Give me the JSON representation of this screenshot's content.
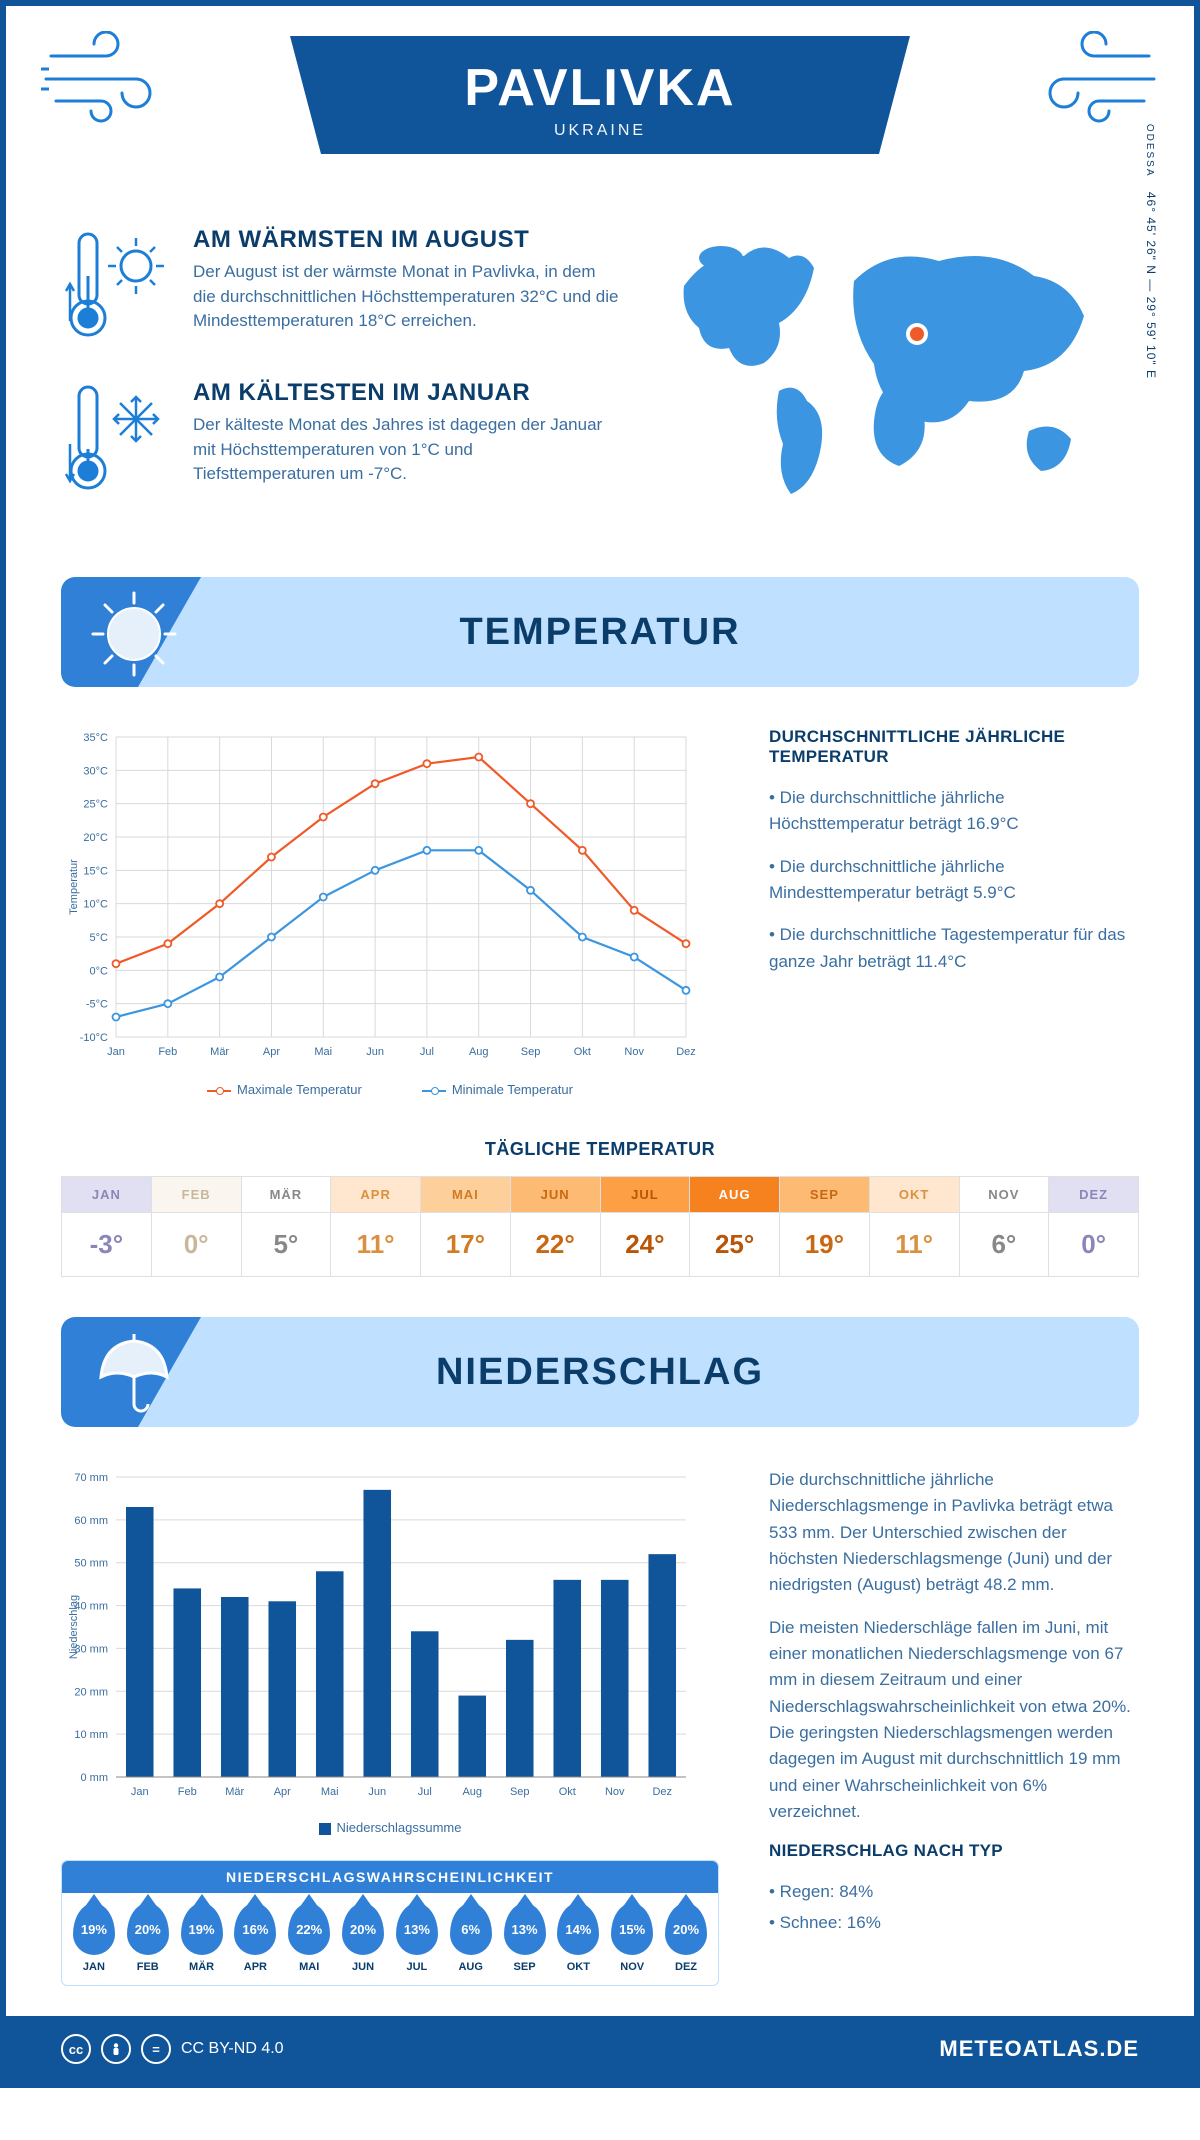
{
  "header": {
    "city": "PAVLIVKA",
    "country": "UKRAINE",
    "region": "ODESSA",
    "coords": "46° 45' 26\" N — 29° 59' 10\" E"
  },
  "facts": {
    "warm": {
      "title": "AM WÄRMSTEN IM AUGUST",
      "text": "Der August ist der wärmste Monat in Pavlivka, in dem die durchschnittlichen Höchsttemperaturen 32°C und die Mindesttemperaturen 18°C erreichen."
    },
    "cold": {
      "title": "AM KÄLTESTEN IM JANUAR",
      "text": "Der kälteste Monat des Jahres ist dagegen der Januar mit Höchsttemperaturen von 1°C und Tiefsttemperaturen um -7°C."
    }
  },
  "temp_section": {
    "heading": "TEMPERATUR",
    "info_title": "DURCHSCHNITTLICHE JÄHRLICHE TEMPERATUR",
    "bullet1": "• Die durchschnittliche jährliche Höchsttemperatur beträgt 16.9°C",
    "bullet2": "• Die durchschnittliche jährliche Mindesttemperatur beträgt 5.9°C",
    "bullet3": "• Die durchschnittliche Tagestemperatur für das ganze Jahr beträgt 11.4°C",
    "legend_max": "Maximale Temperatur",
    "legend_min": "Minimale Temperatur",
    "daily_title": "TÄGLICHE TEMPERATUR",
    "chart": {
      "type": "line",
      "months": [
        "Jan",
        "Feb",
        "Mär",
        "Apr",
        "Mai",
        "Jun",
        "Jul",
        "Aug",
        "Sep",
        "Okt",
        "Nov",
        "Dez"
      ],
      "max_series": [
        1,
        4,
        10,
        17,
        23,
        28,
        31,
        32,
        25,
        18,
        9,
        4
      ],
      "min_series": [
        -7,
        -5,
        -1,
        5,
        11,
        15,
        18,
        18,
        12,
        5,
        2,
        -3
      ],
      "max_color": "#ef5a28",
      "min_color": "#3b95e0",
      "ylabel": "Temperatur",
      "ylim": [
        -10,
        35
      ],
      "ytick_step": 5,
      "grid_color": "#d9d9d9",
      "line_width": 2.2,
      "marker": "circle",
      "marker_fill": "#ffffff",
      "background": "#ffffff"
    },
    "daily": {
      "months": [
        "JAN",
        "FEB",
        "MÄR",
        "APR",
        "MAI",
        "JUN",
        "JUL",
        "AUG",
        "SEP",
        "OKT",
        "NOV",
        "DEZ"
      ],
      "values": [
        "-3°",
        "0°",
        "5°",
        "11°",
        "17°",
        "22°",
        "24°",
        "25°",
        "19°",
        "11°",
        "6°",
        "0°"
      ],
      "head_colors": [
        "#e1e0f3",
        "#faf5ef",
        "#ffffff",
        "#fee7ce",
        "#fdcf9b",
        "#fdba72",
        "#fd9f45",
        "#f5821f",
        "#fdba72",
        "#fee7ce",
        "#ffffff",
        "#e1e0f3"
      ],
      "head_text": [
        "#8a87b8",
        "#c9b79b",
        "#888",
        "#d9913f",
        "#d17b22",
        "#c96812",
        "#b85506",
        "#ffffff",
        "#c96812",
        "#d9913f",
        "#888",
        "#8a87b8"
      ],
      "val_colors": [
        "#8a87b8",
        "#c9b79b",
        "#888",
        "#d9913f",
        "#d17b22",
        "#c96812",
        "#b85506",
        "#b85506",
        "#c96812",
        "#d9913f",
        "#888",
        "#8a87b8"
      ]
    }
  },
  "precip_section": {
    "heading": "NIEDERSCHLAG",
    "para1": "Die durchschnittliche jährliche Niederschlagsmenge in Pavlivka beträgt etwa 533 mm. Der Unterschied zwischen der höchsten Niederschlagsmenge (Juni) und der niedrigsten (August) beträgt 48.2 mm.",
    "para2": "Die meisten Niederschläge fallen im Juni, mit einer monatlichen Niederschlagsmenge von 67 mm in diesem Zeitraum und einer Niederschlagswahrscheinlichkeit von etwa 20%. Die geringsten Niederschlagsmengen werden dagegen im August mit durchschnittlich 19 mm und einer Wahrscheinlichkeit von 6% verzeichnet.",
    "type_title": "NIEDERSCHLAG NACH TYP",
    "type1": "• Regen: 84%",
    "type2": "• Schnee: 16%",
    "legend": "Niederschlagssumme",
    "chart": {
      "type": "bar",
      "months": [
        "Jan",
        "Feb",
        "Mär",
        "Apr",
        "Mai",
        "Jun",
        "Jul",
        "Aug",
        "Sep",
        "Okt",
        "Nov",
        "Dez"
      ],
      "values": [
        63,
        44,
        42,
        41,
        48,
        67,
        34,
        19,
        32,
        46,
        46,
        52
      ],
      "bar_color": "#10559a",
      "ylabel": "Niederschlag",
      "ylim": [
        0,
        70
      ],
      "ytick_step": 10,
      "bar_width": 0.58,
      "grid_color": "#d9d9d9",
      "background": "#ffffff"
    },
    "prob": {
      "title": "NIEDERSCHLAGSWAHRSCHEINLICHKEIT",
      "months": [
        "JAN",
        "FEB",
        "MÄR",
        "APR",
        "MAI",
        "JUN",
        "JUL",
        "AUG",
        "SEP",
        "OKT",
        "NOV",
        "DEZ"
      ],
      "values": [
        "19%",
        "20%",
        "19%",
        "16%",
        "22%",
        "20%",
        "13%",
        "6%",
        "13%",
        "14%",
        "15%",
        "20%"
      ],
      "drop_color": "#2f80d6"
    }
  },
  "footer": {
    "license": "CC BY-ND 4.0",
    "brand": "METEOATLAS.DE"
  },
  "palette": {
    "brand_blue": "#10559a",
    "light_blue": "#bfe0ff",
    "mid_blue": "#2f80d6",
    "map_blue": "#3b95e0"
  }
}
